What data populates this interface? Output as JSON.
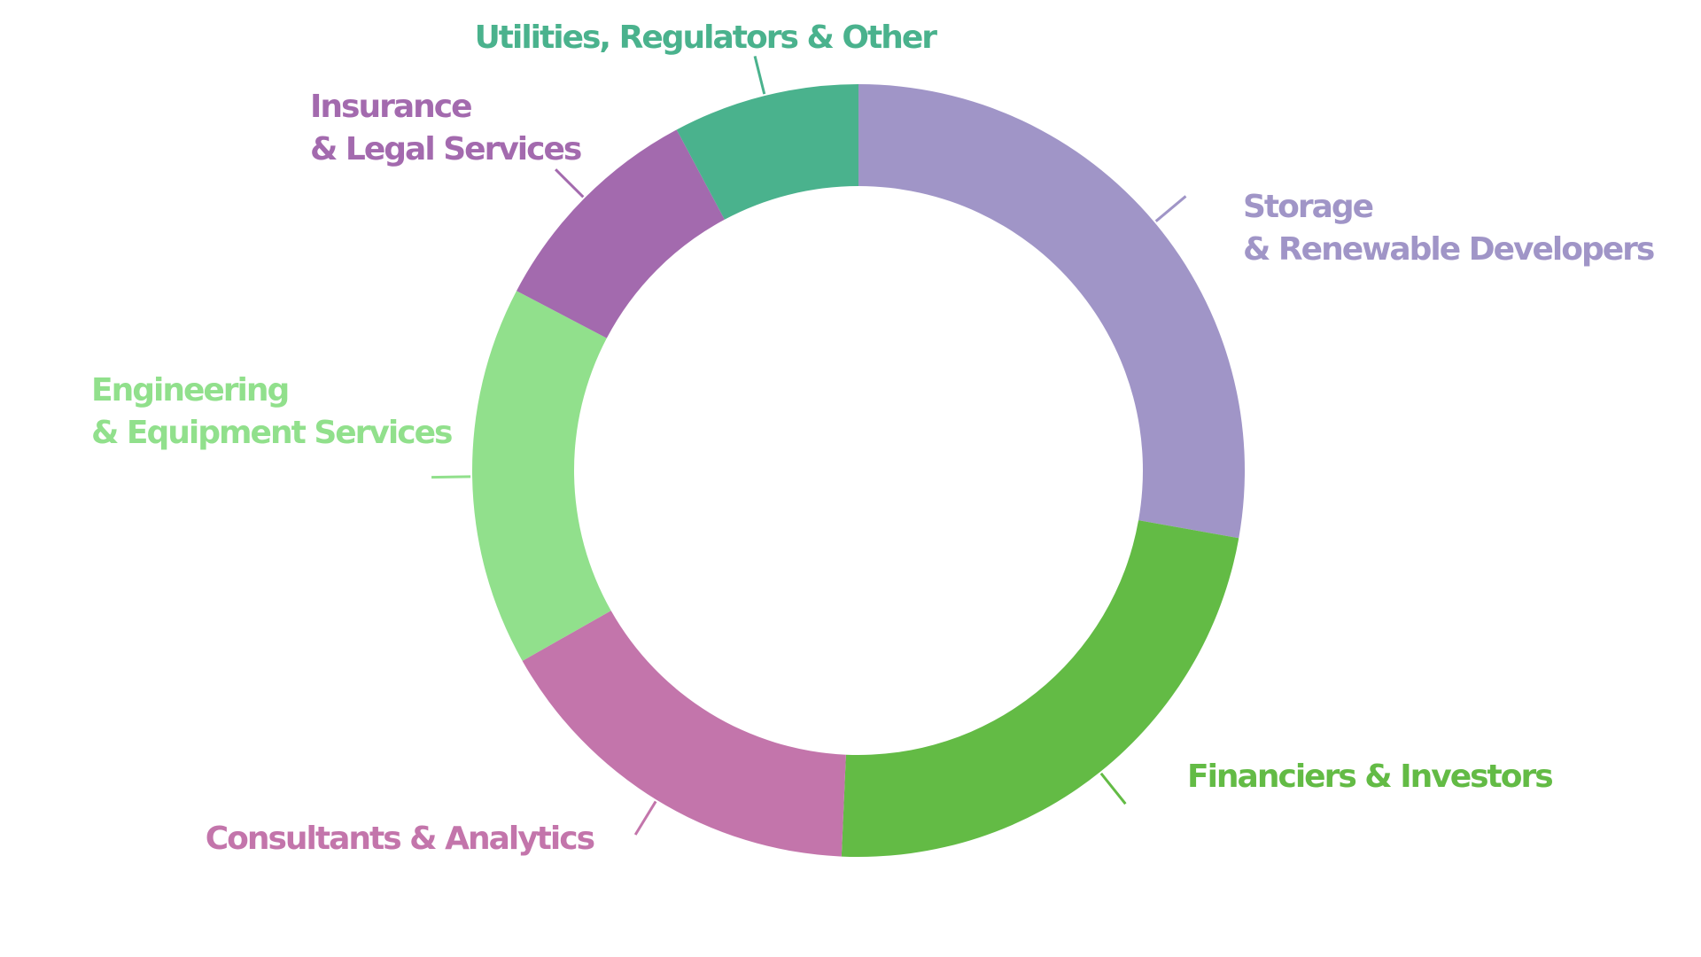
{
  "chart_data": {
    "type": "pie",
    "variant": "donut",
    "title": "",
    "legend": "none",
    "series": [
      {
        "label_lines": [
          "Storage",
          "& Renewable Developers"
        ],
        "value": 27.8,
        "color": "#a095c7"
      },
      {
        "label_lines": [
          "Financiers & Investors"
        ],
        "value": 22.9,
        "color": "#63bb45"
      },
      {
        "label_lines": [
          "Consultants & Analytics"
        ],
        "value": 16.1,
        "color": "#c375ab"
      },
      {
        "label_lines": [
          "Engineering",
          "& Equipment Services"
        ],
        "value": 15.9,
        "color": "#91e08c"
      },
      {
        "label_lines": [
          "Insurance",
          "& Legal Services"
        ],
        "value": 9.5,
        "color": "#a36aae"
      },
      {
        "label_lines": [
          "Utilities, Regulators & Other"
        ],
        "value": 7.8,
        "color": "#4ab28d"
      }
    ]
  }
}
